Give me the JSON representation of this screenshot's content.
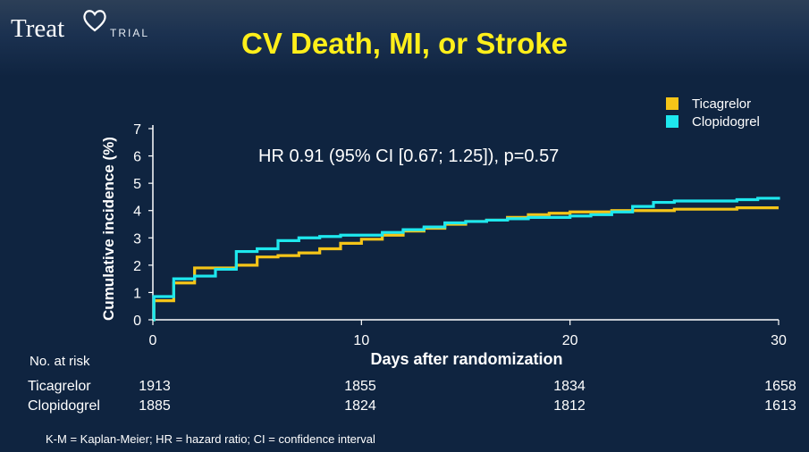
{
  "header": {
    "logo_word": "Treat",
    "logo_sub": "TRIAL",
    "title": "CV Death, MI, or Stroke"
  },
  "chart_data": {
    "type": "line",
    "title": "CV Death, MI, or Stroke",
    "xlabel": "Days after randomization",
    "ylabel": "Cumulative incidence (%)",
    "xlim": [
      0,
      30
    ],
    "ylim": [
      0,
      7
    ],
    "x_ticks": [
      0,
      10,
      20,
      30
    ],
    "y_ticks": [
      0,
      1,
      2,
      3,
      4,
      5,
      6,
      7
    ],
    "grid": false,
    "legend_position": "top-right",
    "annotation": "HR 0.91 (95% CI [0.67; 1.25]), p=0.57",
    "series": [
      {
        "name": "Ticagrelor",
        "color": "#f5c518",
        "step_points": [
          [
            0,
            0
          ],
          [
            0.05,
            0.7
          ],
          [
            1,
            1.35
          ],
          [
            2,
            1.9
          ],
          [
            4,
            2.0
          ],
          [
            5,
            2.3
          ],
          [
            6,
            2.35
          ],
          [
            7,
            2.45
          ],
          [
            8,
            2.6
          ],
          [
            9,
            2.8
          ],
          [
            10,
            2.95
          ],
          [
            11,
            3.1
          ],
          [
            12,
            3.25
          ],
          [
            13,
            3.35
          ],
          [
            14,
            3.5
          ],
          [
            15,
            3.6
          ],
          [
            16,
            3.65
          ],
          [
            17,
            3.75
          ],
          [
            18,
            3.85
          ],
          [
            19,
            3.9
          ],
          [
            20,
            3.95
          ],
          [
            22,
            4.0
          ],
          [
            23,
            4.0
          ],
          [
            25,
            4.05
          ],
          [
            28,
            4.1
          ],
          [
            30,
            4.1
          ]
        ]
      },
      {
        "name": "Clopidogrel",
        "color": "#1ee8ee",
        "step_points": [
          [
            0,
            0
          ],
          [
            0.05,
            0.85
          ],
          [
            1,
            1.5
          ],
          [
            2,
            1.6
          ],
          [
            3,
            1.85
          ],
          [
            4,
            2.5
          ],
          [
            5,
            2.6
          ],
          [
            6,
            2.9
          ],
          [
            7,
            3.0
          ],
          [
            8,
            3.05
          ],
          [
            9,
            3.1
          ],
          [
            10,
            3.1
          ],
          [
            11,
            3.2
          ],
          [
            12,
            3.3
          ],
          [
            13,
            3.4
          ],
          [
            14,
            3.55
          ],
          [
            15,
            3.6
          ],
          [
            16,
            3.65
          ],
          [
            17,
            3.7
          ],
          [
            18,
            3.75
          ],
          [
            20,
            3.8
          ],
          [
            21,
            3.85
          ],
          [
            22,
            3.95
          ],
          [
            23,
            4.15
          ],
          [
            24,
            4.3
          ],
          [
            25,
            4.35
          ],
          [
            28,
            4.4
          ],
          [
            29,
            4.45
          ],
          [
            30,
            4.5
          ]
        ]
      }
    ]
  },
  "risk_table": {
    "heading": "No. at risk",
    "rows": [
      {
        "label": "Ticagrelor",
        "values": [
          "1913",
          "1855",
          "1834",
          "1658"
        ]
      },
      {
        "label": "Clopidogrel",
        "values": [
          "1885",
          "1824",
          "1812",
          "1613"
        ]
      }
    ]
  },
  "footnote": "K-M = Kaplan-Meier; HR = hazard ratio; CI = confidence interval"
}
